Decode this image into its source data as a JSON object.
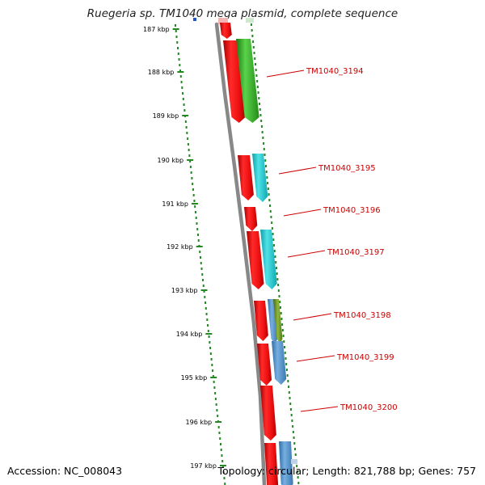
{
  "title": "Ruegeria sp. TM1040 mega plasmid, complete sequence",
  "scale_labels": [
    "187 kbp",
    "188 kbp",
    "189 kbp",
    "190 kbp",
    "191 kbp",
    "192 kbp",
    "193 kbp",
    "194 kbp",
    "195 kbp",
    "196 kbp",
    "197 kbp"
  ],
  "gene_labels": [
    "TM1040_3194",
    "TM1040_3195",
    "TM1040_3196",
    "TM1040_3197",
    "TM1040_3198",
    "TM1040_3199",
    "TM1040_3200"
  ],
  "footer": {
    "accession": "Accession: NC_008043",
    "summary": "Topology: circular; Length: 821,788 bp; Genes: 757"
  },
  "colors": {
    "cds": "#ee1111",
    "gene_green": "#33bb22",
    "gene_cyan": "#22cccc",
    "gene_blue": "#4f8fc8",
    "gene_olive": "#6b8e23",
    "scale_dots": "#228822",
    "backbone": "#888888",
    "label": "#cc0000"
  }
}
